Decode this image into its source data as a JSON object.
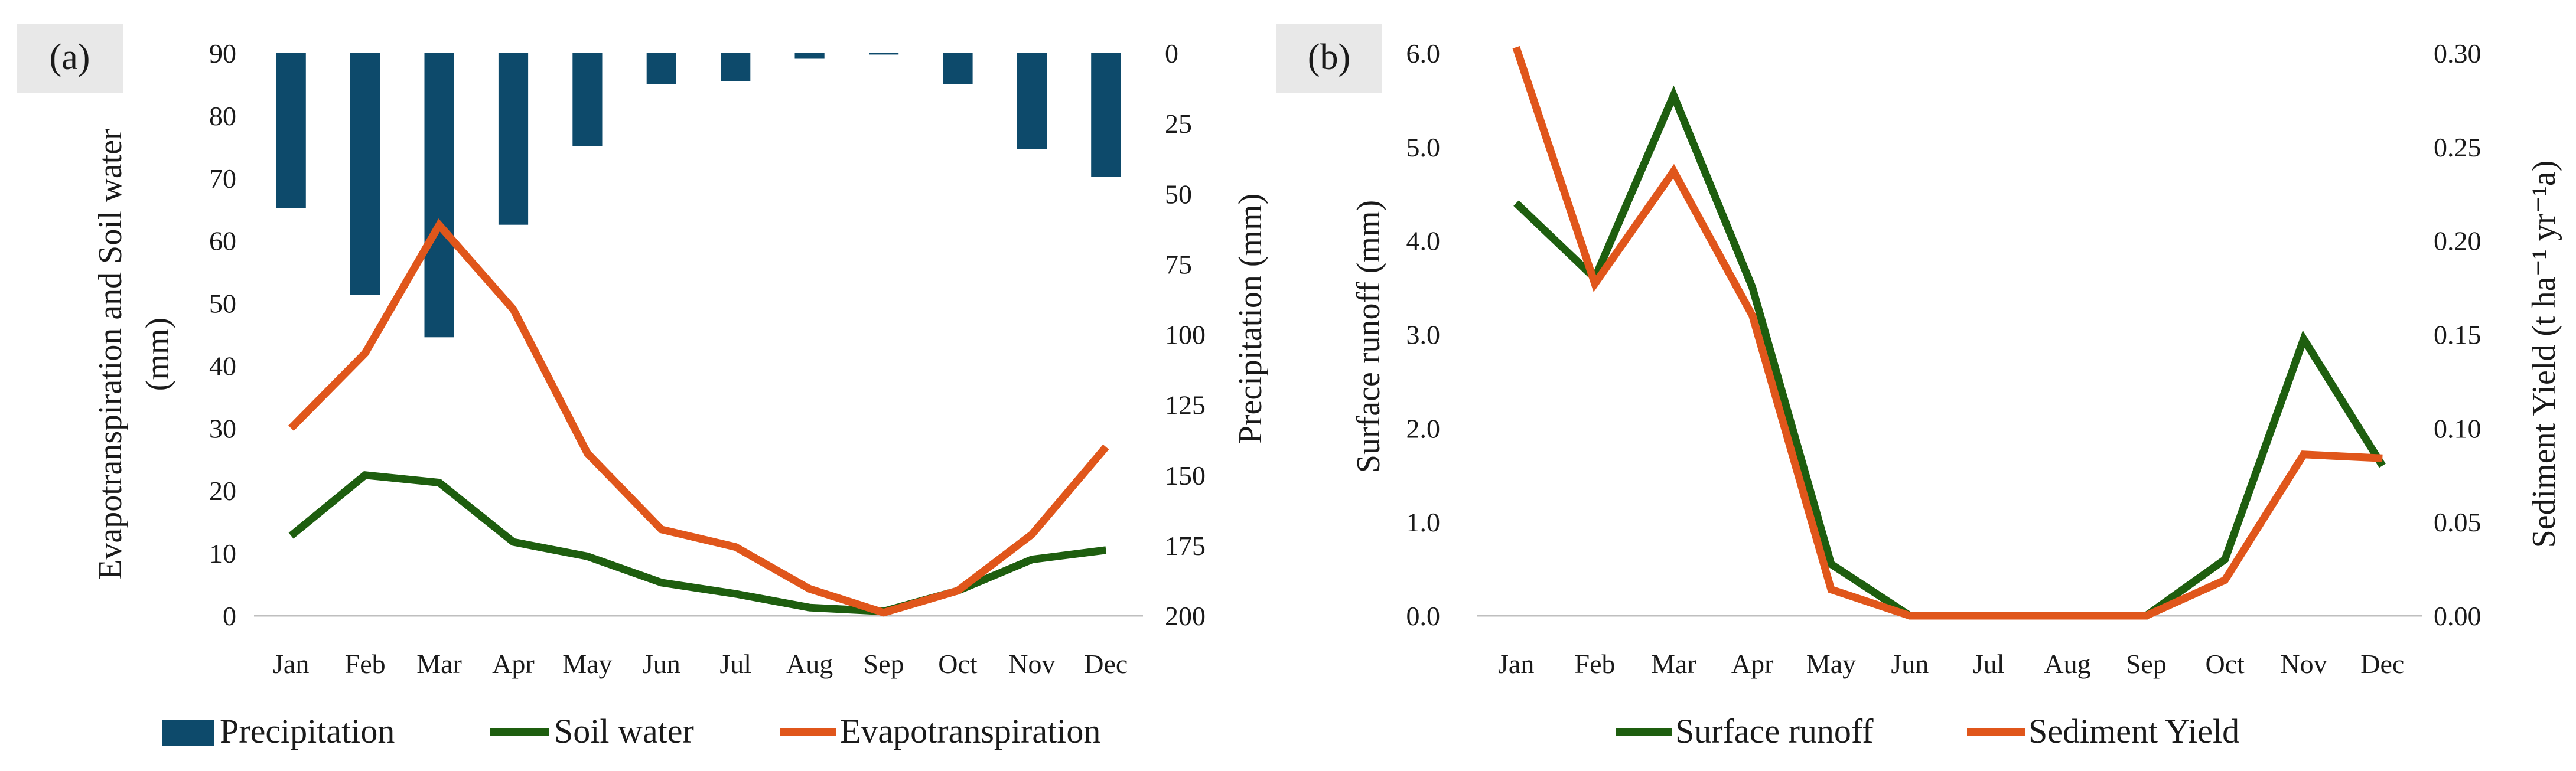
{
  "chart_data": [
    {
      "type": "bar+line",
      "panel_label": "(a)",
      "categories": [
        "Jan",
        "Feb",
        "Mar",
        "Apr",
        "May",
        "Jun",
        "Jul",
        "Aug",
        "Sep",
        "Oct",
        "Nov",
        "Dec"
      ],
      "left_axis": {
        "title": "Evapotranspiration and Soil water (mm)",
        "title_lines": [
          "Evapotranspiration and Soil water",
          "(mm)"
        ],
        "range": [
          0,
          90
        ],
        "ticks": [
          "0",
          "10",
          "20",
          "30",
          "40",
          "50",
          "60",
          "70",
          "80",
          "90"
        ]
      },
      "right_axis": {
        "title": "Precipitation (mm)",
        "range": [
          0,
          200
        ],
        "inverted": true,
        "ticks": [
          "0",
          "25",
          "50",
          "75",
          "100",
          "125",
          "150",
          "175",
          "200"
        ]
      },
      "series": [
        {
          "name": "Precipitation",
          "kind": "bar",
          "axis": "right",
          "color": "#0d4a6b",
          "values": [
            55,
            86,
            101,
            61,
            33,
            11,
            10,
            2,
            0.5,
            11,
            34,
            44
          ]
        },
        {
          "name": "Soil water",
          "kind": "line",
          "axis": "left",
          "color": "#1e5e0f",
          "values": [
            12.8,
            22.5,
            21.3,
            11.8,
            9.5,
            5.3,
            3.5,
            1.3,
            0.7,
            4.0,
            9.0,
            10.5
          ]
        },
        {
          "name": "Evapotranspiration",
          "kind": "line",
          "axis": "left",
          "color": "#e0561b",
          "values": [
            30.0,
            42.0,
            62.5,
            49.0,
            26.0,
            13.8,
            11.0,
            4.3,
            0.5,
            4.0,
            13.0,
            27.0
          ]
        }
      ],
      "legend": [
        "Precipitation",
        "Soil water",
        "Evapotranspiration"
      ],
      "legend_position": "bottom"
    },
    {
      "type": "line",
      "panel_label": "(b)",
      "categories": [
        "Jan",
        "Feb",
        "Mar",
        "Apr",
        "May",
        "Jun",
        "Jul",
        "Aug",
        "Sep",
        "Oct",
        "Nov",
        "Dec"
      ],
      "left_axis": {
        "title": "Surface runoff (mm)",
        "range": [
          0,
          6
        ],
        "ticks": [
          "0.0",
          "1.0",
          "2.0",
          "3.0",
          "4.0",
          "5.0",
          "6.0"
        ]
      },
      "right_axis": {
        "title": "Sediment Yield (t ha⁻¹ yr⁻¹a)",
        "range": [
          0,
          0.3
        ],
        "ticks": [
          "0.00",
          "0.05",
          "0.10",
          "0.15",
          "0.20",
          "0.25",
          "0.30"
        ]
      },
      "series": [
        {
          "name": "Surface runoff",
          "kind": "line",
          "axis": "left",
          "color": "#1e5e0f",
          "values": [
            4.4,
            3.6,
            5.55,
            3.5,
            0.55,
            0.0,
            0.0,
            0.0,
            0.0,
            0.6,
            2.95,
            1.6
          ]
        },
        {
          "name": "Sediment Yield",
          "kind": "line",
          "axis": "right",
          "color": "#e0561b",
          "values": [
            0.305,
            0.177,
            0.237,
            0.16,
            0.014,
            0.0,
            0.0,
            0.0,
            0.0,
            0.019,
            0.086,
            0.084
          ]
        }
      ],
      "legend": [
        "Surface runoff",
        "Sediment Yield"
      ],
      "legend_position": "bottom"
    }
  ]
}
